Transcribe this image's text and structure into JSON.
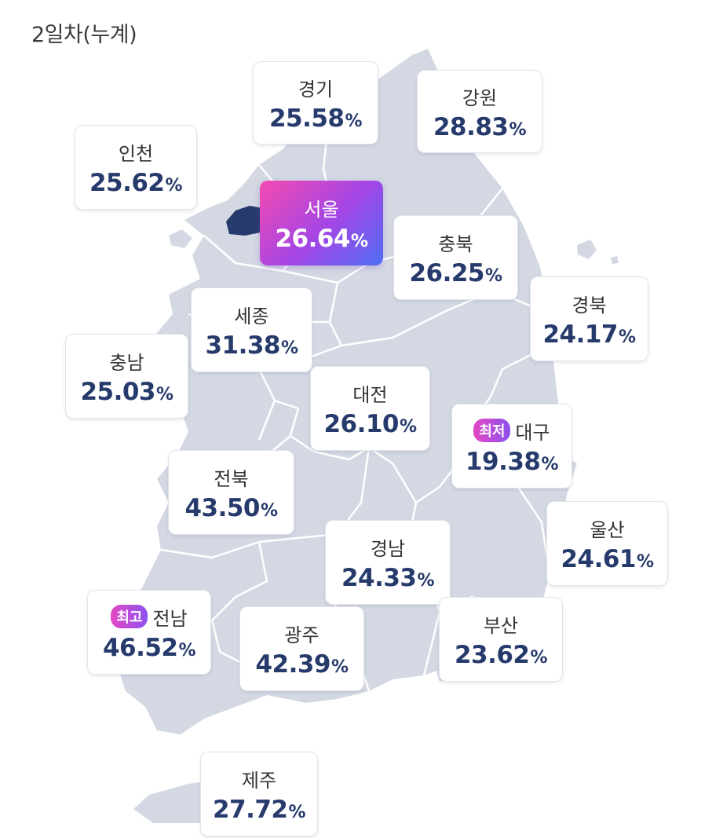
{
  "title": "2일차(누계)",
  "colors": {
    "land": "#d3d8e3",
    "border": "#ffffff",
    "seoul": "#263a6c",
    "value": "#263a6c",
    "accent_start": "#f44ab0",
    "accent_end": "#4f6ef4"
  },
  "regions": [
    {
      "id": "gyeonggi",
      "name": "경기",
      "value": "25.58",
      "unit": "%"
    },
    {
      "id": "gangwon",
      "name": "강원",
      "value": "28.83",
      "unit": "%"
    },
    {
      "id": "incheon",
      "name": "인천",
      "value": "25.62",
      "unit": "%"
    },
    {
      "id": "seoul",
      "name": "서울",
      "value": "26.64",
      "unit": "%",
      "selected": true
    },
    {
      "id": "chungbuk",
      "name": "충북",
      "value": "26.25",
      "unit": "%"
    },
    {
      "id": "gyeongbuk",
      "name": "경북",
      "value": "24.17",
      "unit": "%"
    },
    {
      "id": "sejong",
      "name": "세종",
      "value": "31.38",
      "unit": "%"
    },
    {
      "id": "chungnam",
      "name": "충남",
      "value": "25.03",
      "unit": "%"
    },
    {
      "id": "daejeon",
      "name": "대전",
      "value": "26.10",
      "unit": "%"
    },
    {
      "id": "daegu",
      "name": "대구",
      "value": "19.38",
      "unit": "%",
      "badge": "최저"
    },
    {
      "id": "jeonbuk",
      "name": "전북",
      "value": "43.50",
      "unit": "%"
    },
    {
      "id": "ulsan",
      "name": "울산",
      "value": "24.61",
      "unit": "%"
    },
    {
      "id": "gyeongnam",
      "name": "경남",
      "value": "24.33",
      "unit": "%"
    },
    {
      "id": "jeonnam",
      "name": "전남",
      "value": "46.52",
      "unit": "%",
      "badge": "최고"
    },
    {
      "id": "gwangju",
      "name": "광주",
      "value": "42.39",
      "unit": "%"
    },
    {
      "id": "busan",
      "name": "부산",
      "value": "23.62",
      "unit": "%"
    },
    {
      "id": "jeju",
      "name": "제주",
      "value": "27.72",
      "unit": "%"
    }
  ]
}
